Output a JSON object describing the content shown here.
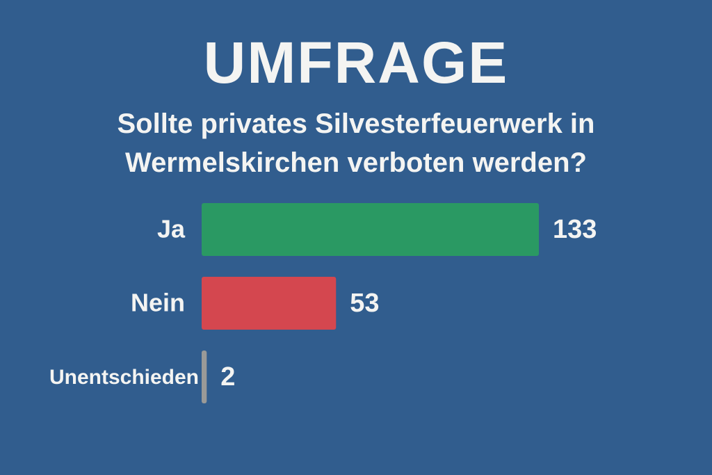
{
  "chart_data": {
    "type": "bar",
    "orientation": "horizontal",
    "title": "UMFRAGE",
    "subtitle": "Sollte privates Silvesterfeuerwerk in Wermelskirchen verboten werden?",
    "categories": [
      "Ja",
      "Nein",
      "Unentschieden"
    ],
    "values": [
      133,
      53,
      2
    ],
    "colors": [
      "#2a9963",
      "#d4474f",
      "#9a9a98"
    ]
  }
}
